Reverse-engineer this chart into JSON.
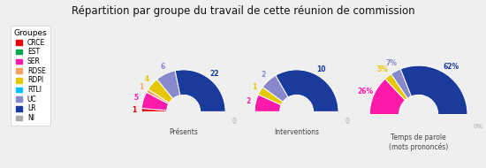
{
  "title": "Répartition par groupe du travail de cette réunion de commission",
  "groups": [
    "CRCE",
    "EST",
    "SER",
    "RDSE",
    "RDPI",
    "RTLI",
    "UC",
    "LR",
    "NI"
  ],
  "colors": [
    "#e8000d",
    "#00a650",
    "#ff1aaa",
    "#f4a460",
    "#e6c800",
    "#00bfff",
    "#8888cc",
    "#1a3a9c",
    "#aaaaaa"
  ],
  "presents": [
    1,
    0,
    5,
    1,
    4,
    0,
    6,
    22,
    0
  ],
  "interventions": [
    0,
    0,
    2,
    0,
    1,
    0,
    2,
    10,
    0
  ],
  "temps_parole_pct": [
    0,
    0,
    26,
    0,
    5,
    0,
    7,
    62,
    0
  ],
  "background": "#efefef",
  "label_presents": "Présents",
  "label_interventions": "Interventions",
  "label_temps": "Temps de parole\n(mots prononcés)",
  "legend_title": "Groupes"
}
